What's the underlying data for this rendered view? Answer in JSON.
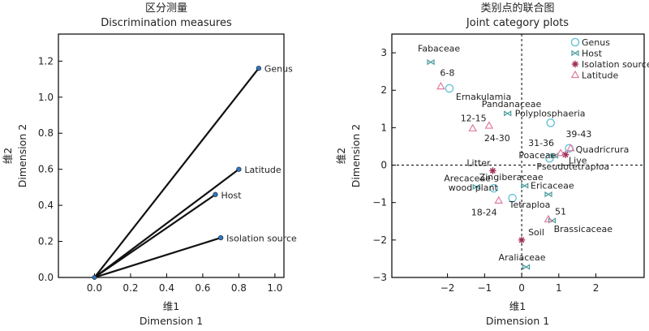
{
  "chart_data": [
    {
      "type": "line",
      "title": "区分测量",
      "subtitle": "Discrimination measures",
      "xlabel_cn": "维1",
      "xlabel": "Dimension 1",
      "ylabel_cn": "维2",
      "ylabel": "Dimension 2",
      "xlim": [
        -0.2,
        1.05
      ],
      "ylim": [
        0,
        1.35
      ],
      "xticks": [
        "0.0",
        "0.2",
        "0.4",
        "0.6",
        "0.8",
        "1.0"
      ],
      "xtick_values": [
        0,
        0.2,
        0.4,
        0.6,
        0.8,
        1.0
      ],
      "yticks": [
        "0.0",
        "0.2",
        "0.4",
        "0.6",
        "0.8",
        "1.0",
        "1.2"
      ],
      "ytick_values": [
        0,
        0.2,
        0.4,
        0.6,
        0.8,
        1.0,
        1.2
      ],
      "grid": false,
      "line_color": "#111111",
      "point_color": "#2f78c4",
      "series": [
        {
          "name": "Genus",
          "x": 0.91,
          "y": 1.16
        },
        {
          "name": "Latitude",
          "x": 0.8,
          "y": 0.6
        },
        {
          "name": "Host",
          "x": 0.67,
          "y": 0.46
        },
        {
          "name": "Isolation source",
          "x": 0.7,
          "y": 0.22
        }
      ]
    },
    {
      "type": "scatter",
      "title": "类别点的联合图",
      "subtitle": "Joint category plots",
      "xlabel_cn": "维1",
      "xlabel": "Dimension 1",
      "ylabel_cn": "维2",
      "ylabel": "Dimension 2",
      "xlim": [
        -3.5,
        3.3
      ],
      "ylim": [
        -3,
        3.5
      ],
      "xticks": [
        "−2",
        "−1",
        "0",
        "1",
        "2"
      ],
      "xtick_values": [
        -2,
        -1,
        0,
        1,
        2
      ],
      "yticks": [
        "−3",
        "−2",
        "−1",
        "0",
        "1",
        "2",
        "3"
      ],
      "ytick_values": [
        -3,
        -2,
        -1,
        0,
        1,
        2,
        3
      ],
      "grid": false,
      "reference_lines": {
        "x": 0,
        "y": 0,
        "style": "dashed"
      },
      "legend_position": "top-right",
      "legend": [
        {
          "name": "Genus",
          "marker": "circle",
          "color": "#5bc0d6"
        },
        {
          "name": "Host",
          "marker": "bowtie",
          "color": "#4a9a9a"
        },
        {
          "name": "Isolation source",
          "marker": "star",
          "color": "#a0305a"
        },
        {
          "name": "Latitude",
          "marker": "triangle",
          "color": "#e07aa0"
        }
      ],
      "series": [
        {
          "name": "Genus",
          "points": [
            {
              "label": "Ernakulamia",
              "x": -1.95,
              "y": 2.05
            },
            {
              "label": "Polyplosphaeria",
              "x": 0.78,
              "y": 1.13
            },
            {
              "label": "Quadricrura",
              "x": 1.28,
              "y": 0.45
            },
            {
              "label": "Pseudotetraploa",
              "x": 0.75,
              "y": 0.18
            },
            {
              "label": "wood plant",
              "x": -0.75,
              "y": -0.62
            },
            {
              "label": "Tetraploa",
              "x": -0.25,
              "y": -0.88
            }
          ]
        },
        {
          "name": "Host",
          "points": [
            {
              "label": "Fabaceae",
              "x": -2.45,
              "y": 2.75
            },
            {
              "label": "Pandanaceae",
              "x": -0.38,
              "y": 1.38
            },
            {
              "label": "Poaceae",
              "x": 0.88,
              "y": 0.25
            },
            {
              "label": "Zingiberaceae",
              "x": 0.08,
              "y": -0.55
            },
            {
              "label": "Arecaceae",
              "x": -1.22,
              "y": -0.58
            },
            {
              "label": "Ericaceae",
              "x": 0.72,
              "y": -0.78
            },
            {
              "label": "Brassicaceae",
              "x": 0.82,
              "y": -1.48
            },
            {
              "label": "Araliaceae",
              "x": 0.12,
              "y": -2.72
            }
          ]
        },
        {
          "name": "Isolation source",
          "points": [
            {
              "label": "Live",
              "x": 1.18,
              "y": 0.28
            },
            {
              "label": "Litter",
              "x": -0.78,
              "y": -0.15
            },
            {
              "label": "Soil",
              "x": 0.0,
              "y": -2.0
            }
          ]
        },
        {
          "name": "Latitude",
          "points": [
            {
              "label": "6-8",
              "x": -2.18,
              "y": 2.1
            },
            {
              "label": "12-15",
              "x": -1.32,
              "y": 0.98
            },
            {
              "label": "24-30",
              "x": -0.88,
              "y": 1.05
            },
            {
              "label": "39-43",
              "x": 1.32,
              "y": 0.45
            },
            {
              "label": "31-36",
              "x": 1.05,
              "y": 0.32
            },
            {
              "label": "18-24",
              "x": -0.62,
              "y": -0.95
            },
            {
              "label": "51",
              "x": 0.72,
              "y": -1.45
            }
          ]
        }
      ]
    }
  ]
}
